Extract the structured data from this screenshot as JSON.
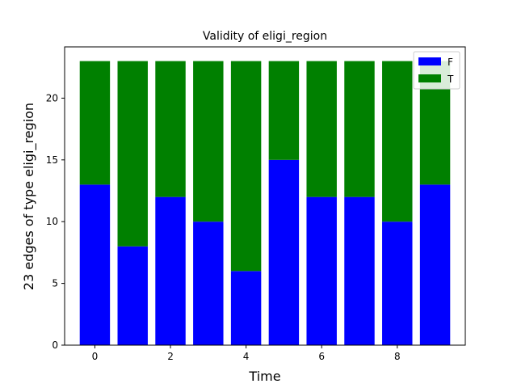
{
  "chart_data": {
    "type": "bar",
    "stacked": true,
    "title": "Validity of eligi_region",
    "xlabel": "Time",
    "ylabel": "23 edges  of type eligi_region",
    "x": [
      0,
      1,
      2,
      3,
      4,
      5,
      6,
      7,
      8,
      9
    ],
    "xlim": [
      -0.8,
      9.8
    ],
    "ylim": [
      0,
      24.15
    ],
    "xticks": [
      "0",
      "2",
      "4",
      "6",
      "8"
    ],
    "xtick_values": [
      0,
      2,
      4,
      6,
      8
    ],
    "yticks": [
      "0",
      "5",
      "10",
      "15",
      "20"
    ],
    "ytick_values": [
      0,
      5,
      10,
      15,
      20
    ],
    "series": [
      {
        "name": "F",
        "color": "#0000ff",
        "values": [
          13,
          8,
          12,
          10,
          6,
          15,
          12,
          12,
          10,
          13
        ]
      },
      {
        "name": "T",
        "color": "#008000",
        "values": [
          10,
          15,
          11,
          13,
          17,
          8,
          11,
          11,
          13,
          10
        ]
      }
    ],
    "legend_position": "top-right",
    "grid": false
  }
}
